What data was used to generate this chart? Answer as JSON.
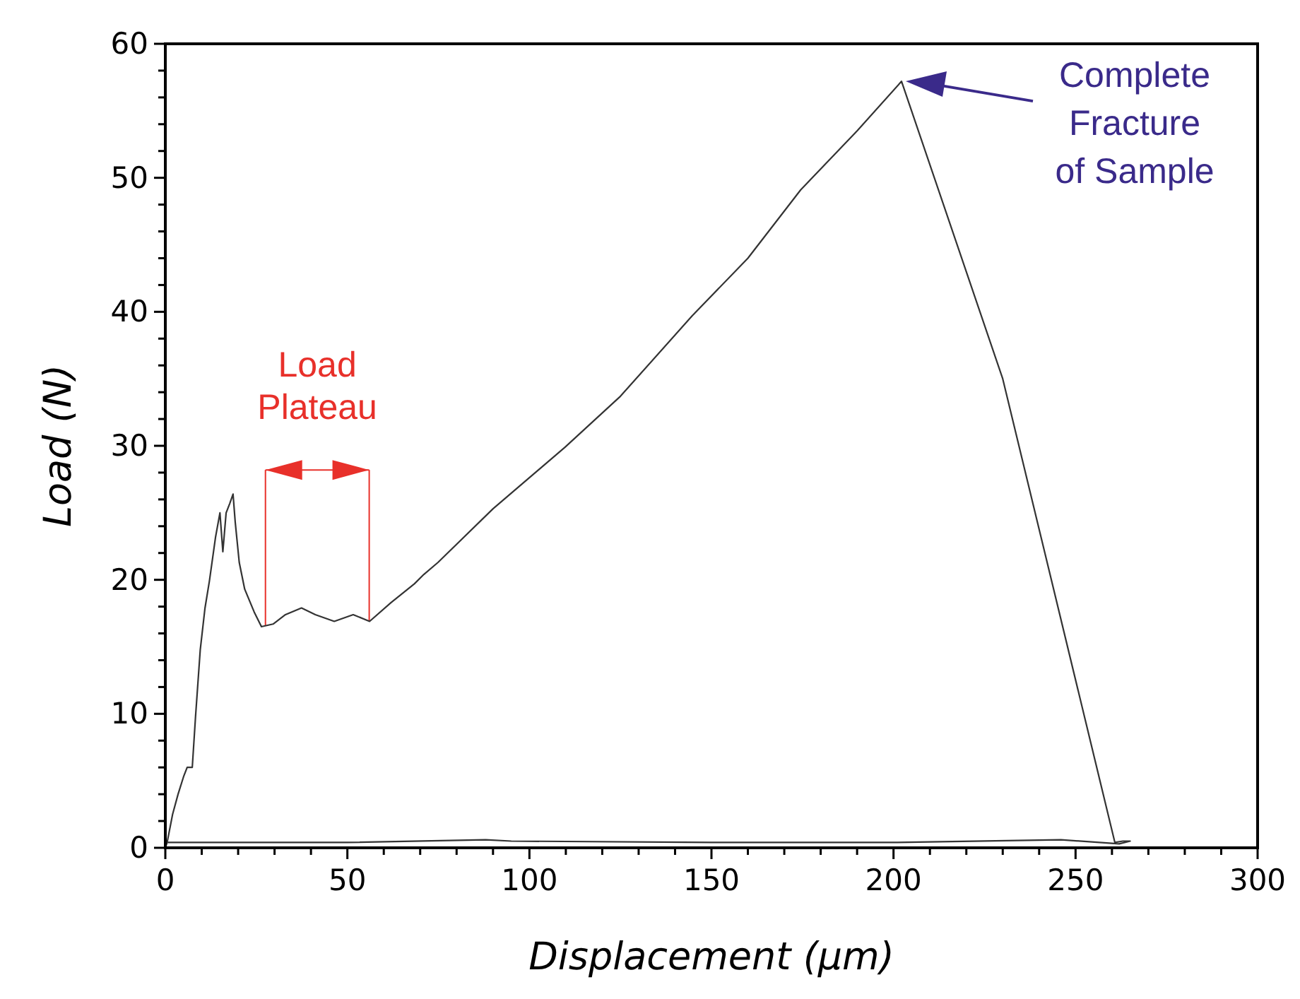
{
  "chart_data": {
    "type": "line",
    "xlabel": "Displacement (µm)",
    "ylabel": "Load (N)",
    "x": [
      0,
      0.5,
      2,
      3.5,
      5,
      6,
      7.4,
      8.3,
      9.6,
      10.9,
      12.1,
      13.8,
      15,
      15.8,
      16.7,
      17.7,
      18.6,
      19.2,
      20.3,
      21.8,
      24.4,
      26.4,
      29.6,
      33,
      37.4,
      41.2,
      46.4,
      51.6,
      56.1,
      62,
      68.4,
      71,
      74.9,
      90,
      109.8,
      125,
      144.7,
      160,
      174.5,
      190,
      202.2,
      230,
      260.8,
      263,
      265,
      262,
      246,
      200,
      150,
      95,
      88,
      50,
      20,
      5,
      0
    ],
    "series": [
      {
        "color": "#333333",
        "values": [
          0,
          0.4,
          2.5,
          4,
          5.3,
          6,
          6,
          9.8,
          14.8,
          17.9,
          19.9,
          23.2,
          25,
          22.1,
          25,
          25.7,
          26.4,
          24.3,
          21.3,
          19.3,
          17.6,
          16.5,
          16.7,
          17.4,
          17.9,
          17.4,
          16.9,
          17.4,
          16.9,
          18.3,
          19.7,
          20.4,
          21.3,
          25.3,
          29.9,
          33.7,
          39.7,
          44,
          49.1,
          53.5,
          57.2,
          35,
          0.4,
          0.5,
          0.5,
          0.3,
          0.6,
          0.4,
          0.4,
          0.5,
          0.6,
          0.4,
          0.4,
          0.4,
          0.4
        ]
      }
    ],
    "xlim": [
      0,
      300
    ],
    "ylim": [
      0,
      60
    ],
    "xticks": [
      0,
      {
        "value": 10,
        "label": null
      },
      {
        "value": 20,
        "label": null
      },
      {
        "value": 30,
        "label": null
      },
      {
        "value": 40,
        "label": null
      },
      50,
      {
        "value": 60,
        "label": null
      },
      {
        "value": 70,
        "label": null
      },
      {
        "value": 80,
        "label": null
      },
      {
        "value": 90,
        "label": null
      },
      100,
      {
        "value": 110,
        "label": null
      },
      {
        "value": 120,
        "label": null
      },
      {
        "value": 130,
        "label": null
      },
      {
        "value": 140,
        "label": null
      },
      150,
      {
        "value": 160,
        "label": null
      },
      {
        "value": 170,
        "label": null
      },
      {
        "value": 180,
        "label": null
      },
      {
        "value": 190,
        "label": null
      },
      200,
      {
        "value": 210,
        "label": null
      },
      {
        "value": 220,
        "label": null
      },
      {
        "value": 230,
        "label": null
      },
      {
        "value": 240,
        "label": null
      },
      250,
      {
        "value": 260,
        "label": null
      },
      {
        "value": 270,
        "label": null
      },
      {
        "value": 280,
        "label": null
      },
      {
        "value": 290,
        "label": null
      },
      300
    ],
    "yticks": [
      0,
      {
        "value": 2,
        "label": null
      },
      {
        "value": 4,
        "label": null
      },
      {
        "value": 6,
        "label": null
      },
      {
        "value": 8,
        "label": null
      },
      10,
      {
        "value": 12,
        "label": null
      },
      {
        "value": 14,
        "label": null
      },
      {
        "value": 16,
        "label": null
      },
      {
        "value": 18,
        "label": null
      },
      20,
      {
        "value": 22,
        "label": null
      },
      {
        "value": 24,
        "label": null
      },
      {
        "value": 26,
        "label": null
      },
      {
        "value": 28,
        "label": null
      },
      30,
      {
        "value": 32,
        "label": null
      },
      {
        "value": 34,
        "label": null
      },
      {
        "value": 36,
        "label": null
      },
      {
        "value": 38,
        "label": null
      },
      40,
      {
        "value": 42,
        "label": null
      },
      {
        "value": 44,
        "label": null
      },
      {
        "value": 46,
        "label": null
      },
      {
        "value": 48,
        "label": null
      },
      50,
      {
        "value": 52,
        "label": null
      },
      {
        "value": 54,
        "label": null
      },
      {
        "value": 56,
        "label": null
      },
      {
        "value": 58,
        "label": null
      },
      60
    ],
    "ref_lines": [
      {
        "axis": "x",
        "value": 27.5,
        "color": "#e8302a"
      },
      {
        "axis": "x",
        "value": 56,
        "color": "#e8302a"
      }
    ],
    "annotations": [
      "Load Plateau",
      "Complete Fracture of Sample"
    ]
  }
}
